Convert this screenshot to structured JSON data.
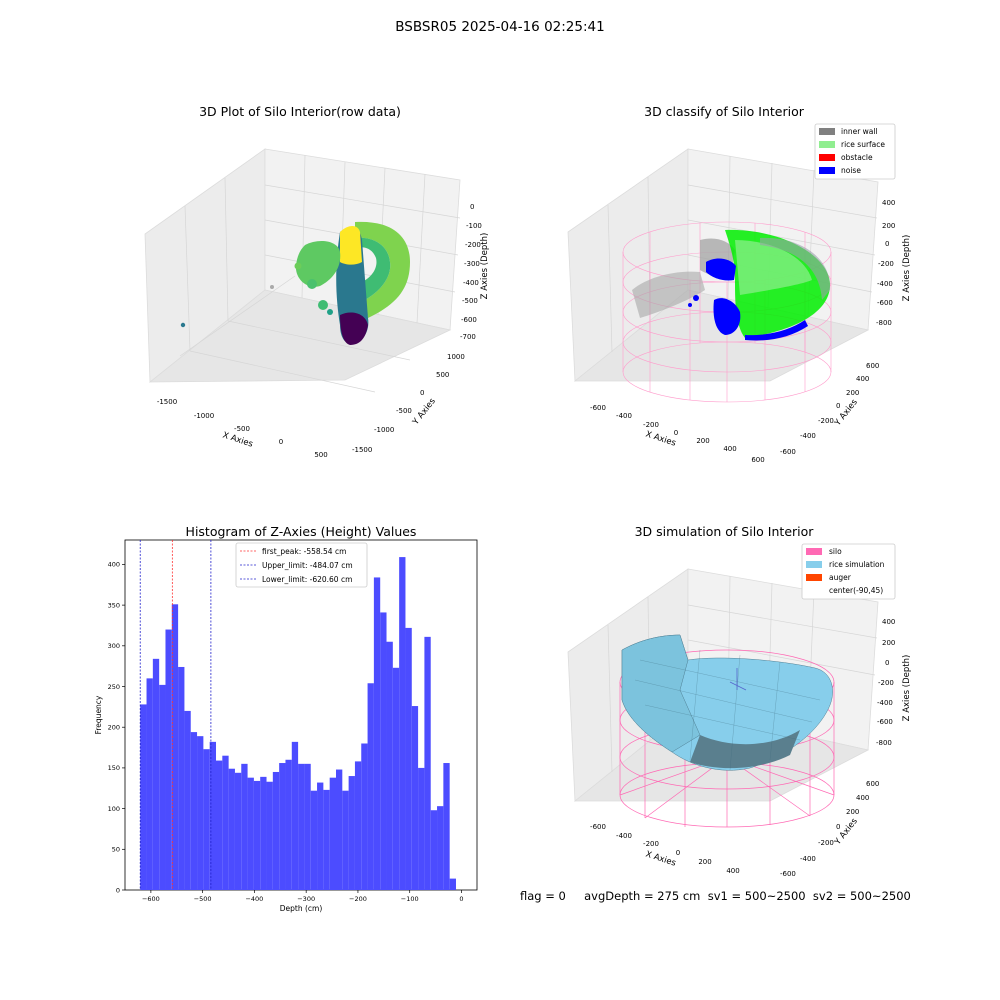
{
  "figure": {
    "suptitle": "BSBSR05 2025-04-16 02:25:41",
    "footer": "flag = 0     avgDepth = 275 cm  sv1 = 500~2500  sv2 = 500~2500"
  },
  "colors": {
    "hist_bar": "#4c4cff",
    "first_peak_line": "#ff3333",
    "limit_line": "#2222cc",
    "silo": "#ff69b4",
    "rice_simulation": "#87ceeb",
    "auger": "#ff4500",
    "inner_wall": "#808080",
    "rice_surface": "#90ee90",
    "obstacle": "#ff0000",
    "noise": "#0000ff"
  },
  "panels": {
    "raw": {
      "title": "3D Plot of Silo Interior(row data)",
      "xlabel": "X Axies",
      "ylabel": "Y Axies",
      "zlabel": "Z Axies (Depth)",
      "xticks": [
        "-1500",
        "-1000",
        "-500",
        "0",
        "500"
      ],
      "yticks": [
        "1000",
        "500",
        "0",
        "-500",
        "-1000",
        "-1500"
      ],
      "zticks": [
        "0",
        "-100",
        "-200",
        "-300",
        "-400",
        "-500",
        "-600",
        "-700"
      ]
    },
    "classify": {
      "title": "3D classify of Silo Interior",
      "xlabel": "X Axies",
      "ylabel": "Y Axies",
      "zlabel": "Z Axies (Depth)",
      "xticks": [
        "-600",
        "-400",
        "-200",
        "0",
        "200",
        "400",
        "600"
      ],
      "yticks": [
        "600",
        "400",
        "200",
        "0",
        "-200",
        "-400",
        "-600"
      ],
      "zticks": [
        "400",
        "200",
        "0",
        "-200",
        "-400",
        "-600",
        "-800"
      ],
      "legend": [
        "inner wall",
        "rice surface",
        "obstacle",
        "noise"
      ]
    },
    "simulation": {
      "title": "3D simulation of Silo Interior",
      "xlabel": "X Axies",
      "ylabel": "Y Axies",
      "zlabel": "Z Axies (Depth)",
      "xticks": [
        "-600",
        "-400",
        "-200",
        "0",
        "200",
        "400"
      ],
      "yticks": [
        "600",
        "400",
        "200",
        "0",
        "-200",
        "-400",
        "-600"
      ],
      "zticks": [
        "400",
        "200",
        "0",
        "-200",
        "-400",
        "-600",
        "-800"
      ],
      "legend": [
        "silo",
        "rice simulation",
        "auger",
        "center(-90,45)"
      ]
    }
  },
  "chart_data": {
    "type": "bar",
    "title": "Histogram of Z-Axies (Height) Values",
    "xlabel": "Depth (cm)",
    "ylabel": "Frequency",
    "xlim": [
      -650,
      30
    ],
    "ylim": [
      0,
      430
    ],
    "xticks": [
      -600,
      -500,
      -400,
      -300,
      -200,
      -100,
      0
    ],
    "yticks": [
      0,
      50,
      100,
      150,
      200,
      250,
      300,
      350,
      400
    ],
    "bin_start": -620.6,
    "bin_width": 12.2,
    "values": [
      228,
      260,
      284,
      252,
      320,
      351,
      274,
      220,
      194,
      189,
      173,
      182,
      159,
      165,
      149,
      144,
      155,
      138,
      134,
      139,
      133,
      145,
      156,
      160,
      182,
      155,
      155,
      122,
      132,
      123,
      138,
      148,
      122,
      140,
      158,
      180,
      254,
      384,
      341,
      305,
      273,
      409,
      322,
      226,
      150,
      311,
      98,
      103,
      156,
      14
    ],
    "lines": [
      {
        "label": "first_peak: -558.54 cm",
        "x": -558.54,
        "color": "#ff3333"
      },
      {
        "label": "Upper_limit: -484.07 cm",
        "x": -484.07,
        "color": "#2222cc"
      },
      {
        "label": "Lower_limit: -620.60 cm",
        "x": -620.6,
        "color": "#2222cc"
      }
    ]
  }
}
